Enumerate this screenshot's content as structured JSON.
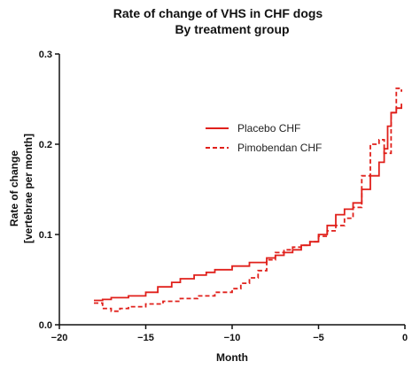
{
  "chart_data": {
    "type": "line",
    "title": "Rate of change of VHS in CHF dogs",
    "subtitle": "By treatment group",
    "xlabel": "Month",
    "ylabel_line1": "Rate of change",
    "ylabel_line2": "[vertebrae per month]",
    "xlim": [
      -20,
      0
    ],
    "ylim": [
      0.0,
      0.3
    ],
    "x_ticks": [
      -20,
      -15,
      -10,
      -5,
      0
    ],
    "y_ticks": [
      0.0,
      0.1,
      0.2,
      0.3
    ],
    "x_tick_labels": [
      "−20",
      "−15",
      "−10",
      "−5",
      "0"
    ],
    "y_tick_labels": [
      "0.0",
      "0.1",
      "0.2",
      "0.3"
    ],
    "grid": false,
    "legend_position": "center-right",
    "series": [
      {
        "name": "Placebo CHF",
        "style": "solid",
        "color": "#e0201b",
        "x": [
          -18,
          -17.5,
          -17.0,
          -16.0,
          -15.0,
          -14.3,
          -13.5,
          -13.0,
          -12.2,
          -11.5,
          -11.0,
          -10.0,
          -9.0,
          -8.0,
          -7.5,
          -7.0,
          -6.5,
          -6.0,
          -5.5,
          -5.0,
          -4.5,
          -4.0,
          -3.5,
          -3.0,
          -2.5,
          -2.0,
          -1.5,
          -1.2,
          -1.0,
          -0.8,
          -0.5,
          -0.2
        ],
        "y": [
          0.027,
          0.028,
          0.03,
          0.032,
          0.036,
          0.042,
          0.047,
          0.051,
          0.055,
          0.058,
          0.061,
          0.065,
          0.069,
          0.074,
          0.077,
          0.08,
          0.083,
          0.088,
          0.092,
          0.1,
          0.11,
          0.122,
          0.128,
          0.135,
          0.15,
          0.165,
          0.18,
          0.195,
          0.22,
          0.235,
          0.24,
          0.245
        ]
      },
      {
        "name": "Pimobendan CHF",
        "style": "dashed",
        "color": "#e0201b",
        "x": [
          -18,
          -17.5,
          -17.0,
          -16.5,
          -16.0,
          -15.0,
          -14.0,
          -13.0,
          -12.0,
          -11.0,
          -10.0,
          -9.5,
          -9.0,
          -8.5,
          -8.0,
          -7.5,
          -7.0,
          -6.5,
          -6.0,
          -5.5,
          -5.0,
          -4.5,
          -4.0,
          -3.5,
          -3.0,
          -2.5,
          -2.0,
          -1.5,
          -1.2,
          -0.8,
          -0.5,
          -0.2
        ],
        "y": [
          0.024,
          0.018,
          0.015,
          0.018,
          0.02,
          0.023,
          0.026,
          0.029,
          0.032,
          0.036,
          0.04,
          0.046,
          0.052,
          0.06,
          0.072,
          0.08,
          0.083,
          0.086,
          0.088,
          0.092,
          0.098,
          0.104,
          0.11,
          0.118,
          0.13,
          0.165,
          0.2,
          0.205,
          0.19,
          0.235,
          0.262,
          0.258
        ]
      }
    ]
  }
}
